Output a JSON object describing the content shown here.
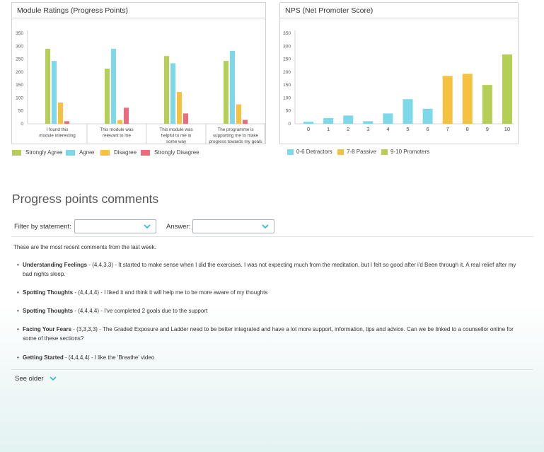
{
  "module_chart": {
    "title": "Module Ratings (Progress Points)",
    "chart_data": {
      "type": "bar",
      "title": "Module Ratings (Progress Points)",
      "categories": [
        [
          "I found this",
          "module interesting"
        ],
        [
          "This module was",
          "relevant to me"
        ],
        [
          "This module was",
          "helpful to me in",
          "some way"
        ],
        [
          "The programme is",
          "supporting me to make",
          "progress towards my goals"
        ]
      ],
      "series": [
        {
          "name": "Strongly Agree",
          "color": "#b5cf56",
          "values": [
            290,
            213,
            262,
            243
          ]
        },
        {
          "name": "Agree",
          "color": "#7dd8ea",
          "values": [
            243,
            290,
            234,
            282
          ]
        },
        {
          "name": "Disagree",
          "color": "#f5c140",
          "values": [
            82,
            14,
            123,
            75
          ]
        },
        {
          "name": "Strongly Disagree",
          "color": "#ef6b7b",
          "values": [
            10,
            62,
            40,
            15
          ]
        }
      ],
      "yticks": [
        0,
        50,
        100,
        150,
        200,
        250,
        300,
        350
      ],
      "ylim": [
        0,
        350
      ],
      "grid": false,
      "legend_position": "bottom"
    }
  },
  "nps_chart": {
    "title": "NPS (Net Promoter Score)",
    "chart_data": {
      "type": "bar",
      "title": "NPS (Net Promoter Score)",
      "categories": [
        "0",
        "1",
        "2",
        "3",
        "4",
        "5",
        "6",
        "7",
        "8",
        "9",
        "10"
      ],
      "values": [
        8,
        22,
        32,
        10,
        40,
        95,
        58,
        185,
        193,
        150,
        268
      ],
      "bar_groups": [
        "0-6 Detractors",
        "0-6 Detractors",
        "0-6 Detractors",
        "0-6 Detractors",
        "0-6 Detractors",
        "0-6 Detractors",
        "0-6 Detractors",
        "7-8 Passive",
        "7-8 Passive",
        "9-10 Promoters",
        "9-10 Promoters"
      ],
      "legend": [
        {
          "name": "0-6 Detractors",
          "color": "#7dd8ea"
        },
        {
          "name": "7-8 Passive",
          "color": "#f5c140"
        },
        {
          "name": "9-10 Promoters",
          "color": "#b5cf56"
        }
      ],
      "yticks": [
        0,
        50,
        100,
        150,
        200,
        250,
        300,
        350
      ],
      "ylim": [
        0,
        350
      ],
      "grid": false,
      "legend_position": "bottom"
    }
  },
  "comments_section": {
    "title": "Progress points comments",
    "filter_statement_label": "Filter by statement:",
    "answer_label": "Answer:",
    "filter_statement_value": "",
    "answer_value": "",
    "intro": "These are the most recent comments from the last week.",
    "comments": [
      {
        "module": "Understanding Feelings",
        "text": " - (4,4,3,3) - It started to make sense when I did the exercises. I was not expecting much from the meditation, but I felt so good after i'd Been through it. A real relief after my bad nights sleep."
      },
      {
        "module": "Spotting Thoughts",
        "text": " - (4,4,4,4) - I liked it and think it will help me to be more aware of my thoughts"
      },
      {
        "module": "Spotting Thoughts",
        "text": " - (4,4,4,4) - I've completed 2 goals due to the support"
      },
      {
        "module": "Facing Your Fears",
        "text": " - (3,3,3,3) - The Graded Exposure and Ladder need to be better integrated and have a lot more support, information, tips and advice. Can we be linked to a counsellor online for some of these sections?"
      },
      {
        "module": "Getting Started",
        "text": " - (4,4,4,4) - I like the 'Breathe' video"
      }
    ],
    "see_older": "See older",
    "accent_color": "#2bb3d6"
  }
}
